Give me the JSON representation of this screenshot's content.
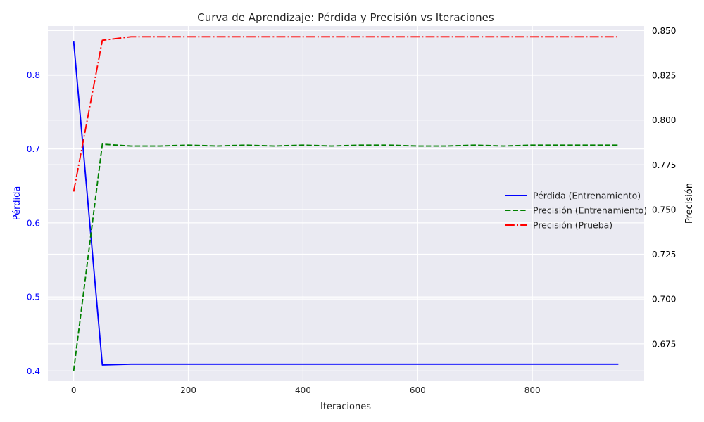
{
  "chart_data": {
    "type": "line",
    "title": "Curva de Aprendizaje: Pérdida y Precisión vs Iteraciones",
    "xlabel": "Iteraciones",
    "ylabel_left": "Pérdida",
    "ylabel_right": "Precisión",
    "xlim": [
      -45,
      995
    ],
    "ylim_left": [
      0.387,
      0.866
    ],
    "ylim_right": [
      0.6545,
      0.8525
    ],
    "x_ticks": [
      0,
      200,
      400,
      600,
      800
    ],
    "y_left_ticks": [
      0.4,
      0.5,
      0.6,
      0.7,
      0.8
    ],
    "y_right_ticks": [
      0.675,
      0.7,
      0.725,
      0.75,
      0.775,
      0.8,
      0.825,
      0.85
    ],
    "grid": true,
    "legend_position": "center-right",
    "x": [
      0,
      50,
      100,
      150,
      200,
      250,
      300,
      350,
      400,
      450,
      500,
      550,
      600,
      650,
      700,
      750,
      800,
      850,
      900,
      950
    ],
    "series": [
      {
        "name": "Pérdida (Entrenamiento)",
        "axis": "left",
        "color": "#0000ff",
        "dash": "solid",
        "values": [
          0.845,
          0.408,
          0.409,
          0.409,
          0.409,
          0.409,
          0.409,
          0.409,
          0.409,
          0.409,
          0.409,
          0.409,
          0.409,
          0.409,
          0.409,
          0.409,
          0.409,
          0.409,
          0.409,
          0.409
        ]
      },
      {
        "name": "Precisión (Entrenamiento)",
        "axis": "right",
        "color": "#008000",
        "dash": "dashed",
        "values": [
          0.66,
          0.7865,
          0.7855,
          0.7855,
          0.786,
          0.7855,
          0.786,
          0.7855,
          0.786,
          0.7855,
          0.786,
          0.786,
          0.7855,
          0.7855,
          0.786,
          0.7855,
          0.786,
          0.786,
          0.786,
          0.786
        ]
      },
      {
        "name": "Precisión (Prueba)",
        "axis": "right",
        "color": "#ff0000",
        "dash": "dashdot",
        "values": [
          0.76,
          0.8445,
          0.8465,
          0.8465,
          0.8465,
          0.8465,
          0.8465,
          0.8465,
          0.8465,
          0.8465,
          0.8465,
          0.8465,
          0.8465,
          0.8465,
          0.8465,
          0.8465,
          0.8465,
          0.8465,
          0.8465,
          0.8465
        ]
      }
    ],
    "colors": {
      "plot_background": "#eaeaf2",
      "grid": "#ffffff",
      "left_axis_text": "#0000ff",
      "right_axis_text": "#000000",
      "axis_text": "#262626"
    }
  }
}
